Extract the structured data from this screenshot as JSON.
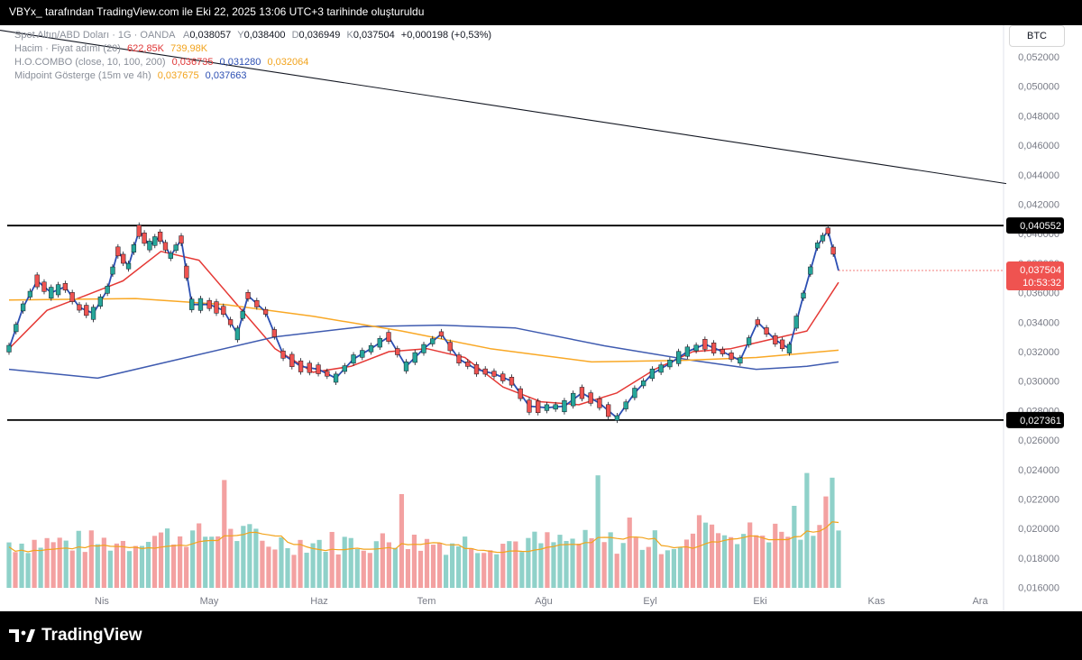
{
  "header": {
    "caption": "VBYx_ tarafından TradingView.com ile Eki 22, 2025 13:06 UTC+3 tarihinde oluşturuldu"
  },
  "legend": {
    "symbol": "Spot Altın/ABD Doları · 1G · OANDA",
    "ohlc": {
      "open_label": "A",
      "open": "0,038057",
      "high_label": "Y",
      "high": "0,038400",
      "low_label": "D",
      "low": "0,036949",
      "close_label": "K",
      "close": "0,037504",
      "change": "+0,000198 (+0,53%)"
    },
    "volume": {
      "label": "Hacim · Fiyat adımı (20)",
      "value": "622,85K",
      "ma": "739,98K"
    },
    "hocombo": {
      "label": "H.O.COMBO (close, 10, 100, 200)",
      "v1": "0,036735",
      "v2": "0,031280",
      "v3": "0,032064"
    },
    "midpoint": {
      "label": "Midpoint Gösterge (15m ve 4h)",
      "v1": "0,037675",
      "v2": "0,037663"
    }
  },
  "axis": {
    "currency_badge": "BTC",
    "price_ticks": [
      "0,052000",
      "0,050000",
      "0,048000",
      "0,046000",
      "0,044000",
      "0,042000",
      "0,040000",
      "0,038000",
      "0,036000",
      "0,034000",
      "0,032000",
      "0,030000",
      "0,028000",
      "0,026000",
      "0,024000",
      "0,022000",
      "0,020000",
      "0,018000",
      "0,016000"
    ],
    "level_labels": [
      "0,040552",
      "0,027361"
    ],
    "last_price": "0,037504",
    "countdown": "10:53:32",
    "months": [
      "Nis",
      "May",
      "Haz",
      "Tem",
      "Ağu",
      "Eyl",
      "Eki",
      "Kas",
      "Ara"
    ]
  },
  "footer": {
    "brand": "TradingView"
  },
  "colors": {
    "up": "#26a69a",
    "down": "#ef5350",
    "price_line": "#2c4fb3",
    "ma_red": "#e53935",
    "ma_orange": "#f9a825",
    "ma_blue": "#3f5bb0",
    "vol_up": "#8fd1c9",
    "vol_down": "#f3a1a1",
    "vol_ma": "#f2a31c"
  },
  "chart_data": {
    "type": "line",
    "title": "Spot Altın/ABD Doları · 1G · OANDA",
    "ylim": [
      0.016,
      0.053
    ],
    "x_months": [
      "Nis",
      "May",
      "Haz",
      "Tem",
      "Ağu",
      "Eyl",
      "Eki",
      "Kas",
      "Ara"
    ],
    "horizontal_levels": [
      0.040552,
      0.027361
    ],
    "trendline": [
      [
        0.0538,
        0.0434
      ]
    ],
    "price_path": [
      [
        "2025-03-10",
        0.0322
      ],
      [
        "2025-03-14",
        0.035
      ],
      [
        "2025-03-18",
        0.0368
      ],
      [
        "2025-03-22",
        0.036
      ],
      [
        "2025-03-26",
        0.0364
      ],
      [
        "2025-03-30",
        0.035
      ],
      [
        "2025-04-03",
        0.0346
      ],
      [
        "2025-04-07",
        0.0362
      ],
      [
        "2025-04-10",
        0.0388
      ],
      [
        "2025-04-13",
        0.0378
      ],
      [
        "2025-04-16",
        0.0402
      ],
      [
        "2025-04-19",
        0.0392
      ],
      [
        "2025-04-22",
        0.0398
      ],
      [
        "2025-04-25",
        0.0385
      ],
      [
        "2025-04-28",
        0.0396
      ],
      [
        "2025-05-01",
        0.0352
      ],
      [
        "2025-05-06",
        0.0352
      ],
      [
        "2025-05-10",
        0.0348
      ],
      [
        "2025-05-14",
        0.0332
      ],
      [
        "2025-05-17",
        0.0358
      ],
      [
        "2025-05-22",
        0.0347
      ],
      [
        "2025-05-27",
        0.0318
      ],
      [
        "2025-06-01",
        0.031
      ],
      [
        "2025-06-06",
        0.0308
      ],
      [
        "2025-06-11",
        0.0302
      ],
      [
        "2025-06-16",
        0.0315
      ],
      [
        "2025-06-21",
        0.0322
      ],
      [
        "2025-06-26",
        0.033
      ],
      [
        "2025-07-01",
        0.031
      ],
      [
        "2025-07-06",
        0.0322
      ],
      [
        "2025-07-11",
        0.0332
      ],
      [
        "2025-07-16",
        0.0315
      ],
      [
        "2025-07-21",
        0.0308
      ],
      [
        "2025-07-26",
        0.0305
      ],
      [
        "2025-07-31",
        0.03
      ],
      [
        "2025-08-05",
        0.0283
      ],
      [
        "2025-08-10",
        0.0282
      ],
      [
        "2025-08-15",
        0.0283
      ],
      [
        "2025-08-20",
        0.0292
      ],
      [
        "2025-08-25",
        0.0285
      ],
      [
        "2025-08-30",
        0.0275
      ],
      [
        "2025-09-04",
        0.0292
      ],
      [
        "2025-09-09",
        0.0305
      ],
      [
        "2025-09-14",
        0.0312
      ],
      [
        "2025-09-19",
        0.032
      ],
      [
        "2025-09-24",
        0.0325
      ],
      [
        "2025-09-29",
        0.032
      ],
      [
        "2025-10-04",
        0.0314
      ],
      [
        "2025-10-09",
        0.034
      ],
      [
        "2025-10-14",
        0.0328
      ],
      [
        "2025-10-18",
        0.0322
      ],
      [
        "2025-10-22",
        0.0358
      ],
      [
        "2025-10-26",
        0.0392
      ],
      [
        "2025-10-29",
        0.0402
      ],
      [
        "2025-11-01",
        0.0375
      ]
    ],
    "series": [
      {
        "name": "H.O.COMBO 10",
        "color": "#e53935",
        "values": [
          [
            0,
            0.0322
          ],
          [
            6,
            0.0348
          ],
          [
            12,
            0.0358
          ],
          [
            18,
            0.0368
          ],
          [
            24,
            0.0388
          ],
          [
            30,
            0.0382
          ],
          [
            36,
            0.0352
          ],
          [
            42,
            0.0322
          ],
          [
            48,
            0.0306
          ],
          [
            54,
            0.031
          ],
          [
            60,
            0.032
          ],
          [
            66,
            0.0322
          ],
          [
            72,
            0.0316
          ],
          [
            78,
            0.0296
          ],
          [
            84,
            0.0286
          ],
          [
            90,
            0.0284
          ],
          [
            96,
            0.0292
          ],
          [
            102,
            0.0308
          ],
          [
            108,
            0.032
          ],
          [
            114,
            0.0322
          ],
          [
            120,
            0.0328
          ],
          [
            126,
            0.0334
          ],
          [
            131,
            0.0367
          ]
        ]
      },
      {
        "name": "H.O.COMBO 100",
        "color": "#3f5bb0",
        "values": [
          [
            0,
            0.0308
          ],
          [
            14,
            0.0302
          ],
          [
            28,
            0.0316
          ],
          [
            42,
            0.033
          ],
          [
            56,
            0.0337
          ],
          [
            68,
            0.0338
          ],
          [
            80,
            0.0336
          ],
          [
            94,
            0.0324
          ],
          [
            108,
            0.0314
          ],
          [
            118,
            0.0308
          ],
          [
            126,
            0.031
          ],
          [
            131,
            0.0313
          ]
        ]
      },
      {
        "name": "H.O.COMBO 200",
        "color": "#f9a825",
        "values": [
          [
            0,
            0.0355
          ],
          [
            20,
            0.0356
          ],
          [
            34,
            0.0352
          ],
          [
            48,
            0.0344
          ],
          [
            62,
            0.0334
          ],
          [
            76,
            0.0322
          ],
          [
            92,
            0.0313
          ],
          [
            106,
            0.0314
          ],
          [
            118,
            0.0316
          ],
          [
            131,
            0.0321
          ]
        ]
      }
    ]
  }
}
